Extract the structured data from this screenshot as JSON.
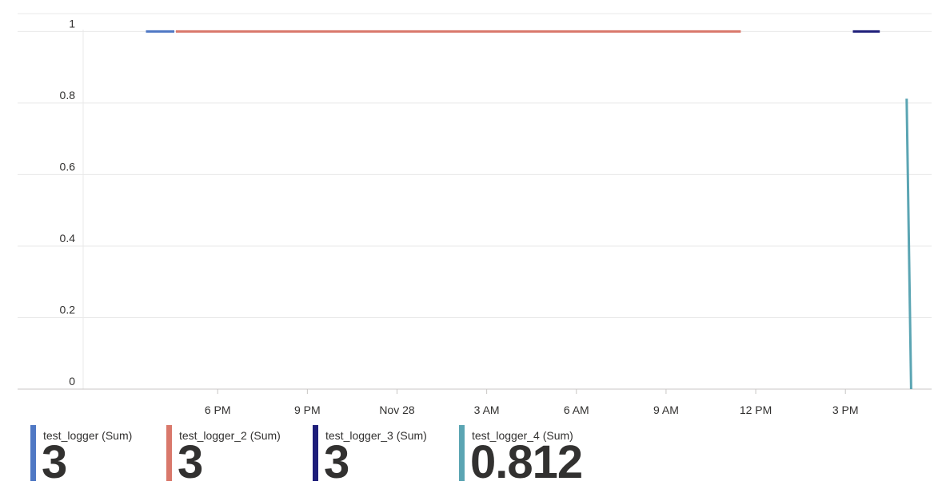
{
  "chart_data": {
    "type": "line",
    "x_axis": {
      "ticks": [
        "6 PM",
        "9 PM",
        "Nov 28",
        "3 AM",
        "6 AM",
        "9 AM",
        "12 PM",
        "3 PM"
      ],
      "tick_hours": [
        18,
        21,
        24,
        27,
        30,
        33,
        36,
        39
      ],
      "range_hours": [
        13.5,
        41.75
      ]
    },
    "y_axis": {
      "ticks": [
        "0",
        "0.2",
        "0.4",
        "0.6",
        "0.8",
        "1"
      ],
      "tick_values": [
        0,
        0.2,
        0.4,
        0.6,
        0.8,
        1
      ],
      "range": [
        0,
        1.05
      ]
    },
    "grid": true,
    "series": [
      {
        "name": "test_logger (Sum)",
        "color": "#4f78c4",
        "points": [
          [
            15.6,
            1
          ],
          [
            16.55,
            1
          ]
        ]
      },
      {
        "name": "test_logger_2 (Sum)",
        "color": "#d9786b",
        "points": [
          [
            16.6,
            1
          ],
          [
            35.5,
            1
          ]
        ]
      },
      {
        "name": "test_logger_3 (Sum)",
        "color": "#1e1e7a",
        "points": [
          [
            39.25,
            1
          ],
          [
            40.15,
            1
          ]
        ]
      },
      {
        "name": "test_logger_4 (Sum)",
        "color": "#5ba5b3",
        "points": [
          [
            41.05,
            0.812
          ],
          [
            41.2,
            0
          ]
        ]
      }
    ]
  },
  "legend": {
    "items": [
      {
        "label": "test_logger (Sum)",
        "value": "3",
        "color": "#4f78c4"
      },
      {
        "label": "test_logger_2 (Sum)",
        "value": "3",
        "color": "#d9786b"
      },
      {
        "label": "test_logger_3 (Sum)",
        "value": "3",
        "color": "#1e1e7a"
      },
      {
        "label": "test_logger_4 (Sum)",
        "value": "0.812",
        "color": "#5ba5b3"
      }
    ]
  }
}
